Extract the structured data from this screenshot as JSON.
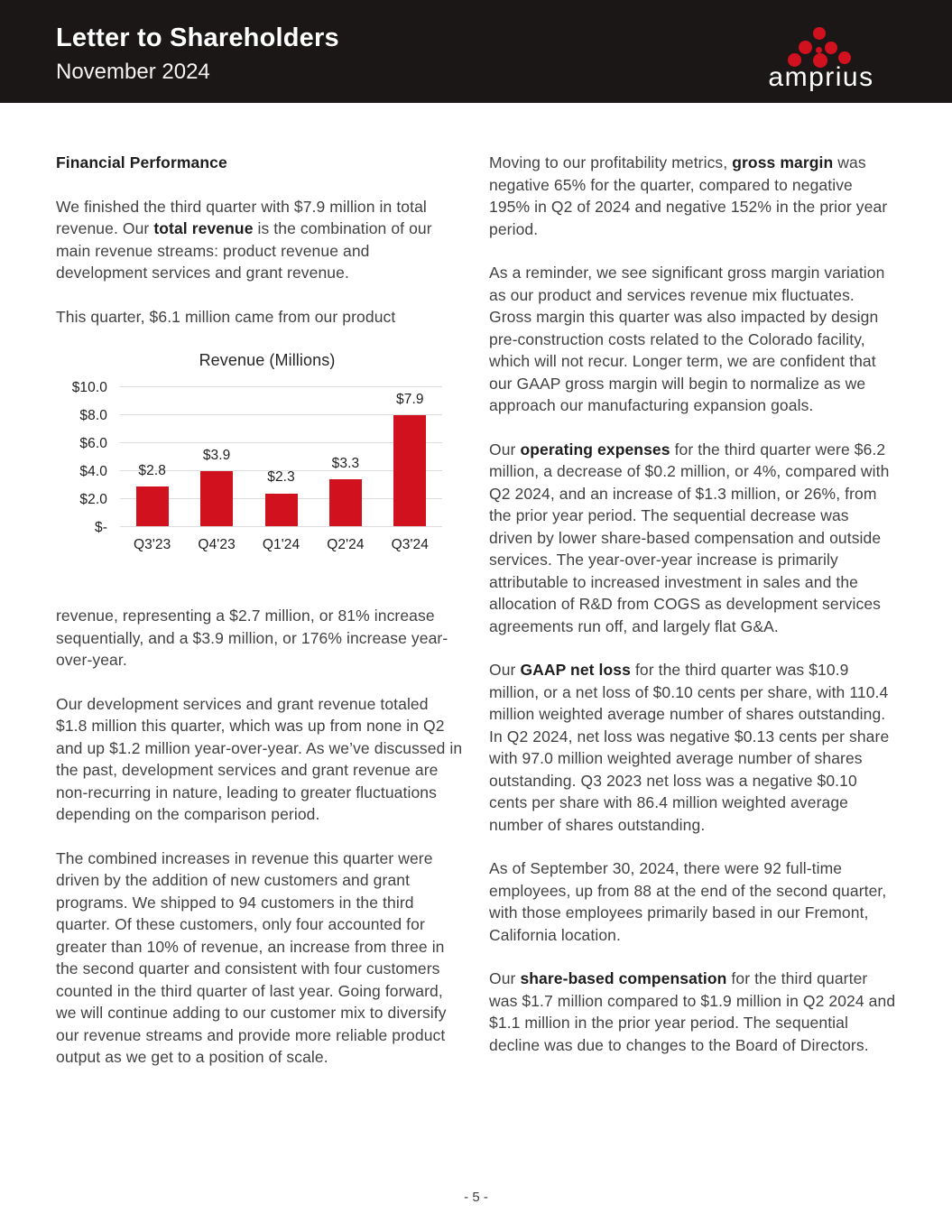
{
  "colors": {
    "brand_red": "#d2111f",
    "header_bg": "#1b1717",
    "body_text": "#424242",
    "heading_text": "#1d1d1d",
    "grid_line": "#dcdcdc"
  },
  "header": {
    "title": "Letter to Shareholders",
    "subtitle": "November 2024",
    "logo_text": "amprius"
  },
  "left_column": {
    "heading": "Financial Performance",
    "para_intro_runs": [
      {
        "text": "We finished the third quarter with $7.9 million in total revenue. Our ",
        "bold": false
      },
      {
        "text": "total revenue",
        "bold": true
      },
      {
        "text": " is the combination of our main revenue streams: product revenue and development services and grant revenue.",
        "bold": false
      }
    ],
    "para_quarter_runs": [
      {
        "text": "This quarter, $6.1 million came from our product",
        "bold": false
      }
    ],
    "para_after_chart_runs": [
      {
        "text": "revenue, representing a $2.7 million, or 81% increase sequentially, and a $3.9 million, or 176% increase year-over-year.",
        "bold": false
      }
    ],
    "para_dev_services_runs": [
      {
        "text": "Our development services and grant revenue totaled $1.8 million this quarter, which was up from none in Q2 and up $1.2 million year-over-year. As we’ve discussed in the past, development services and grant revenue are non-recurring in nature, leading to greater fluctuations depending on the comparison period.",
        "bold": false
      }
    ],
    "para_combined_runs": [
      {
        "text": "The combined increases in revenue this quarter were driven by the addition of new customers and grant programs. We shipped to 94 customers in the third quarter. Of these customers, only four accounted for greater than 10% of revenue, an increase from three in the second quarter and consistent with four customers counted in the third quarter of last year. Going forward, we will continue adding to our customer mix to diversify our revenue streams and provide more reliable product output as we get to a position of scale.",
        "bold": false
      }
    ]
  },
  "right_column": {
    "paragraphs": [
      {
        "runs": [
          {
            "text": "Moving to our profitability metrics, ",
            "bold": false
          },
          {
            "text": "gross margin",
            "bold": true
          },
          {
            "text": " was negative 65% for the quarter, compared to negative 195% in Q2 of 2024 and negative 152% in the prior year period.",
            "bold": false
          }
        ]
      },
      {
        "runs": [
          {
            "text": "As a reminder, we see significant gross margin variation as our product and services revenue mix fluctuates. Gross margin this quarter was also impacted by design pre-construction costs related to the Colorado facility, which will not recur. Longer term, we are confident that our GAAP gross margin will begin to normalize as we approach our manufacturing expansion goals.",
            "bold": false
          }
        ]
      },
      {
        "runs": [
          {
            "text": "Our ",
            "bold": false
          },
          {
            "text": "operating expenses",
            "bold": true
          },
          {
            "text": " for the third quarter were $6.2 million, a decrease of $0.2 million, or 4%, compared with Q2 2024, and an increase of $1.3 million, or 26%, from the prior year period. The sequential decrease was driven by lower share-based compensation and outside services. The year-over-year increase is primarily attributable to increased investment in sales and the allocation of R&D from COGS as development services agreements run off, and largely flat G&A.",
            "bold": false
          }
        ]
      },
      {
        "runs": [
          {
            "text": "Our ",
            "bold": false
          },
          {
            "text": "GAAP net loss",
            "bold": true
          },
          {
            "text": " for the third quarter was $10.9 million, or a net loss of $0.10 cents per share, with 110.4 million weighted average number of shares outstanding. In Q2 2024, net loss was negative $0.13 cents per share with 97.0 million weighted average number of shares outstanding. Q3 2023 net loss was a negative $0.10 cents per share with 86.4 million weighted average number of shares outstanding.",
            "bold": false
          }
        ]
      },
      {
        "runs": [
          {
            "text": "As of September 30, 2024, there were 92 full-time employees, up from 88 at the end of the second quarter, with those employees primarily based in our Fremont, California location.",
            "bold": false
          }
        ]
      },
      {
        "runs": [
          {
            "text": "Our ",
            "bold": false
          },
          {
            "text": "share-based compensation",
            "bold": true
          },
          {
            "text": " for the third quarter was $1.7 million compared to $1.9 million in Q2 2024 and $1.1 million in the prior year period. The sequential decline was due to changes to the Board of Directors.",
            "bold": false
          }
        ]
      }
    ]
  },
  "chart_data": {
    "type": "bar",
    "title": "Revenue (Millions)",
    "categories": [
      "Q3'23",
      "Q4'23",
      "Q1'24",
      "Q2'24",
      "Q3'24"
    ],
    "values": [
      2.8,
      3.9,
      2.3,
      3.3,
      7.9
    ],
    "bar_labels": [
      "$2.8",
      "$3.9",
      "$2.3",
      "$3.3",
      "$7.9"
    ],
    "y_ticks": [
      {
        "value": 10,
        "label": "$10.0"
      },
      {
        "value": 8,
        "label": "$8.0"
      },
      {
        "value": 6,
        "label": "$6.0"
      },
      {
        "value": 4,
        "label": "$4.0"
      },
      {
        "value": 2,
        "label": "$2.0"
      },
      {
        "value": 0,
        "label": "$-"
      }
    ],
    "ylim": [
      0,
      10
    ],
    "xlabel": "",
    "ylabel": "",
    "bar_color": "#d2111f",
    "grid": true,
    "legend_position": "none"
  },
  "footer": {
    "page_number": "- 5 -"
  }
}
